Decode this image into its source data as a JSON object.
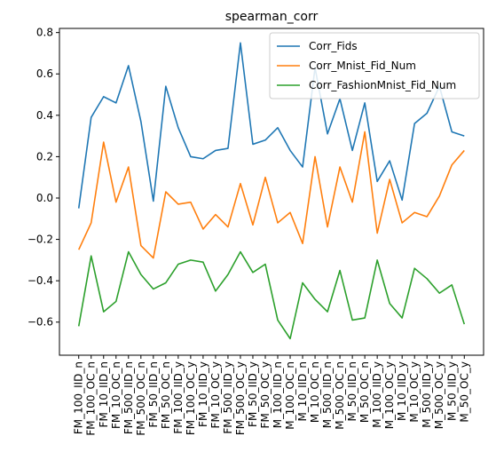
{
  "chart_data": {
    "type": "line",
    "title": "spearman_corr",
    "xlabel": "",
    "ylabel": "",
    "ylim": [
      -0.76,
      0.82
    ],
    "yticks": [
      0.8,
      0.6,
      0.4,
      0.2,
      0.0,
      -0.2,
      -0.4,
      -0.6
    ],
    "ytick_labels": [
      "0.8",
      "0.6",
      "0.4",
      "0.2",
      "0.0",
      "−0.2",
      "−0.4",
      "−0.6"
    ],
    "legend_position": "top-right",
    "grid": false,
    "categories": [
      "FM_100_IID_n",
      "FM_100_OC_n",
      "FM_10_IID_n",
      "FM_10_OC_n",
      "FM_500_IID_n",
      "FM_500_OC_n",
      "FM_50_IID_n",
      "FM_50_OC_n",
      "FM_100_IID_y",
      "FM_100_OC_y",
      "FM_10_IID_y",
      "FM_10_OC_y",
      "FM_500_IID_y",
      "FM_500_OC_y",
      "FM_50_IID_y",
      "FM_50_OC_y",
      "M_100_IID_n",
      "M_100_OC_n",
      "M_10_IID_n",
      "M_10_OC_n",
      "M_500_IID_n",
      "M_500_OC_n",
      "M_50_IID_n",
      "M_50_OC_n",
      "M_100_IID_y",
      "M_100_OC_y",
      "M_10_IID_y",
      "M_10_OC_y",
      "M_500_IID_y",
      "M_500_OC_y",
      "M_50_IID_y",
      "M_50_OC_y"
    ],
    "series": [
      {
        "name": "Corr_Fids",
        "color": "#1f77b4",
        "values": [
          -0.05,
          0.39,
          0.49,
          0.46,
          0.64,
          0.37,
          -0.015,
          0.54,
          0.34,
          0.2,
          0.19,
          0.23,
          0.24,
          0.75,
          0.26,
          0.28,
          0.34,
          0.23,
          0.15,
          0.63,
          0.31,
          0.48,
          0.23,
          0.46,
          0.08,
          0.18,
          -0.01,
          0.36,
          0.41,
          0.54,
          0.32,
          0.3
        ]
      },
      {
        "name": "Corr_Mnist_Fid_Num",
        "color": "#ff7f0e",
        "values": [
          -0.25,
          -0.12,
          0.27,
          -0.02,
          0.15,
          -0.23,
          -0.29,
          0.03,
          -0.03,
          -0.02,
          -0.15,
          -0.08,
          -0.14,
          0.07,
          -0.13,
          0.1,
          -0.12,
          -0.07,
          -0.22,
          0.2,
          -0.14,
          0.15,
          -0.02,
          0.32,
          -0.17,
          0.09,
          -0.12,
          -0.07,
          -0.09,
          0.01,
          0.16,
          0.23
        ]
      },
      {
        "name": "Corr_FashionMnist_Fid_Num",
        "color": "#2ca02c",
        "values": [
          -0.62,
          -0.28,
          -0.55,
          -0.5,
          -0.26,
          -0.37,
          -0.44,
          -0.41,
          -0.32,
          -0.3,
          -0.31,
          -0.45,
          -0.37,
          -0.26,
          -0.36,
          -0.32,
          -0.59,
          -0.68,
          -0.41,
          -0.49,
          -0.55,
          -0.35,
          -0.59,
          -0.58,
          -0.3,
          -0.51,
          -0.58,
          -0.34,
          -0.39,
          -0.46,
          -0.42,
          -0.61
        ]
      }
    ]
  }
}
